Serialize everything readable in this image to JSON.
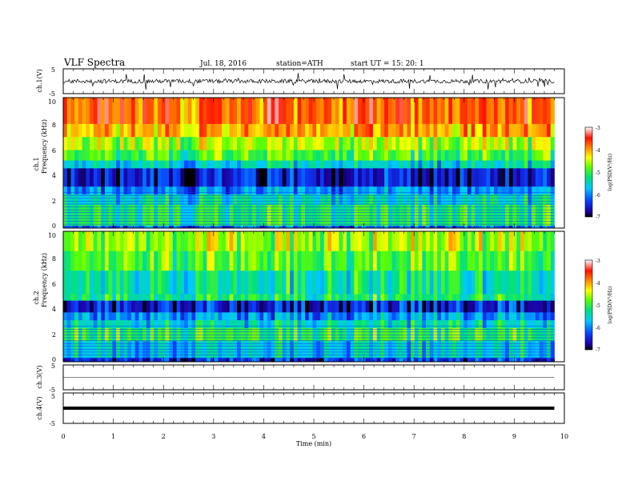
{
  "header": {
    "title": "VLF  Spectra",
    "date": "Jul.  18,  2016",
    "station": "station=ATH",
    "start": "start  UT  =    15: 20: 1"
  },
  "chart_data": [
    {
      "type": "line",
      "panel": "ch1-waveform",
      "ylabel": "ch.1(V)",
      "ylim": [
        -5,
        5
      ],
      "yticks": [
        "5",
        "-5"
      ],
      "xlim": [
        0,
        10
      ],
      "trace_extent_min": 9.8,
      "baseline": 0
    },
    {
      "type": "heatmap",
      "panel": "ch1-spectrogram",
      "ylabel": "ch.1",
      "ylabel2": "Frequency  (kHz)",
      "ylim": [
        0,
        10
      ],
      "yticks": [
        "10",
        "8",
        "6",
        "4",
        "2",
        "0"
      ],
      "xlim": [
        0,
        10
      ],
      "trace_extent_min": 9.8,
      "colorbar": {
        "label": "log(PSD(V²/Hz)",
        "range": [
          -7,
          -3
        ],
        "ticks": [
          "-3",
          "-4",
          "-5",
          "-6",
          "-7"
        ]
      },
      "bands": [
        {
          "f0": 0,
          "f1": 0.2,
          "psd": -6.2
        },
        {
          "f0": 0.2,
          "f1": 1.8,
          "psd": -5.2
        },
        {
          "f0": 1.8,
          "f1": 2.6,
          "psd": -5.5
        },
        {
          "f0": 2.6,
          "f1": 3.2,
          "psd": -6.0
        },
        {
          "f0": 3.2,
          "f1": 4.6,
          "psd": -6.6
        },
        {
          "f0": 4.6,
          "f1": 5.2,
          "psd": -5.6
        },
        {
          "f0": 5.2,
          "f1": 6.0,
          "psd": -5.0
        },
        {
          "f0": 6.0,
          "f1": 7.0,
          "psd": -4.6
        },
        {
          "f0": 7.0,
          "f1": 8.0,
          "psd": -4.1
        },
        {
          "f0": 8.0,
          "f1": 10.0,
          "psd": -3.8
        }
      ]
    },
    {
      "type": "heatmap",
      "panel": "ch2-spectrogram",
      "ylabel": "ch.2",
      "ylabel2": "Frequency  (kHz)",
      "ylim": [
        0,
        10
      ],
      "yticks": [
        "10",
        "8",
        "6",
        "4",
        "2",
        "0"
      ],
      "xlim": [
        0,
        10
      ],
      "trace_extent_min": 9.8,
      "colorbar": {
        "label": "log(PSD(V²/Hz)",
        "range": [
          -7,
          -3
        ],
        "ticks": [
          "-3",
          "-4",
          "-5",
          "-6",
          "-7"
        ]
      },
      "bands": [
        {
          "f0": 0,
          "f1": 0.3,
          "psd": -6.4
        },
        {
          "f0": 0.3,
          "f1": 1.6,
          "psd": -5.6
        },
        {
          "f0": 1.6,
          "f1": 2.6,
          "psd": -5.0
        },
        {
          "f0": 2.6,
          "f1": 3.2,
          "psd": -5.5
        },
        {
          "f0": 3.2,
          "f1": 3.8,
          "psd": -5.9
        },
        {
          "f0": 3.8,
          "f1": 4.7,
          "psd": -6.5
        },
        {
          "f0": 4.7,
          "f1": 5.2,
          "psd": -5.2
        },
        {
          "f0": 5.2,
          "f1": 7.0,
          "psd": -5.3
        },
        {
          "f0": 7.0,
          "f1": 8.5,
          "psd": -4.9
        },
        {
          "f0": 8.5,
          "f1": 10.0,
          "psd": -4.6
        }
      ]
    },
    {
      "type": "line",
      "panel": "ch3-waveform",
      "ylabel": "ch.3(V)",
      "ylim": [
        -5,
        5
      ],
      "yticks": [
        "5",
        "-5"
      ],
      "xlim": [
        0,
        10
      ],
      "trace_extent_min": 9.8,
      "baseline": 0
    },
    {
      "type": "line",
      "panel": "ch4-waveform",
      "ylabel": "ch.4(V)",
      "ylim": [
        -5,
        5
      ],
      "yticks": [
        "5",
        "-5"
      ],
      "xlim": [
        0,
        10
      ],
      "trace_extent_min": 9.8,
      "baseline": 0
    }
  ],
  "xaxis": {
    "label": "Time  (min)",
    "ticks": [
      "0",
      "1",
      "2",
      "3",
      "4",
      "5",
      "6",
      "7",
      "8",
      "9",
      "10"
    ]
  }
}
